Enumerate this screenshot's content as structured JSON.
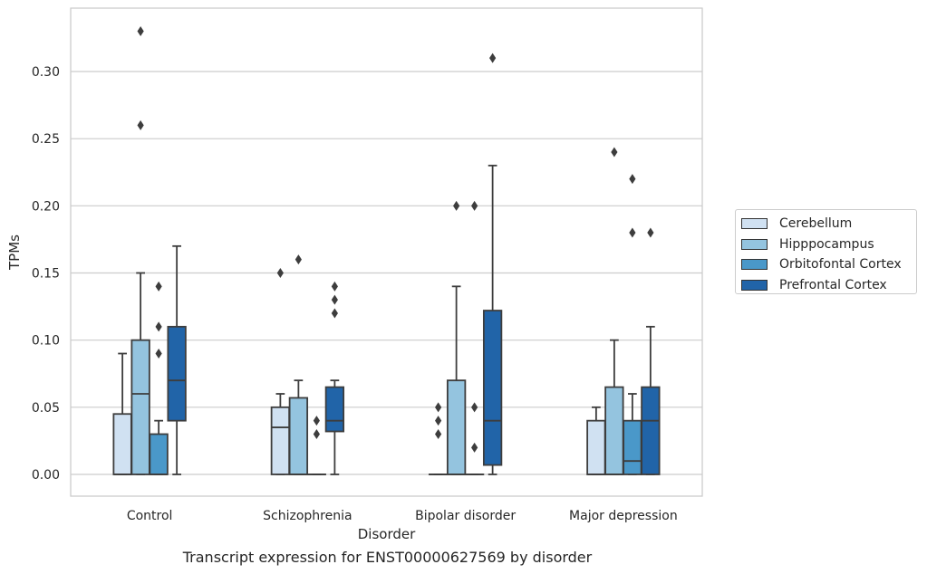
{
  "chart_data": {
    "type": "box",
    "title": "",
    "caption": "Transcript expression for ENST00000627569 by disorder",
    "xlabel": "Disorder",
    "ylabel": "TPMs",
    "ylim": [
      -0.016,
      0.348
    ],
    "yticks": [
      0.0,
      0.05,
      0.1,
      0.15,
      0.2,
      0.25,
      0.3
    ],
    "ytick_labels": [
      "0.00",
      "0.05",
      "0.10",
      "0.15",
      "0.20",
      "0.25",
      "0.30"
    ],
    "grid": "horizontal",
    "legend_position": "right",
    "categories": [
      "Control",
      "Schizophrenia",
      "Bipolar disorder",
      "Major depression"
    ],
    "series": [
      {
        "name": "Cerebellum",
        "color": "#d0e1f2",
        "boxes": [
          {
            "q1": 0.0,
            "median": 0.0,
            "q3": 0.045,
            "whisker_low": 0.0,
            "whisker_high": 0.09,
            "outliers": []
          },
          {
            "q1": 0.0,
            "median": 0.035,
            "q3": 0.05,
            "whisker_low": 0.0,
            "whisker_high": 0.06,
            "outliers": [
              0.15
            ]
          },
          {
            "q1": 0.0,
            "median": 0.0,
            "q3": 0.0,
            "whisker_low": 0.0,
            "whisker_high": 0.0,
            "outliers": [
              0.03,
              0.04,
              0.05
            ]
          },
          {
            "q1": 0.0,
            "median": 0.0,
            "q3": 0.04,
            "whisker_low": 0.0,
            "whisker_high": 0.05,
            "outliers": []
          }
        ]
      },
      {
        "name": "Hipppocampus",
        "color": "#94c4df",
        "boxes": [
          {
            "q1": 0.0,
            "median": 0.06,
            "q3": 0.1,
            "whisker_low": 0.0,
            "whisker_high": 0.15,
            "outliers": [
              0.26,
              0.33
            ]
          },
          {
            "q1": 0.0,
            "median": 0.0,
            "q3": 0.057,
            "whisker_low": 0.0,
            "whisker_high": 0.07,
            "outliers": [
              0.16
            ]
          },
          {
            "q1": 0.0,
            "median": 0.0,
            "q3": 0.07,
            "whisker_low": 0.0,
            "whisker_high": 0.14,
            "outliers": [
              0.2
            ]
          },
          {
            "q1": 0.0,
            "median": 0.0,
            "q3": 0.065,
            "whisker_low": 0.0,
            "whisker_high": 0.1,
            "outliers": [
              0.24
            ]
          }
        ]
      },
      {
        "name": "Orbitofontal Cortex",
        "color": "#4a98c9",
        "boxes": [
          {
            "q1": 0.0,
            "median": 0.0,
            "q3": 0.03,
            "whisker_low": 0.0,
            "whisker_high": 0.04,
            "outliers": [
              0.09,
              0.11,
              0.14
            ]
          },
          {
            "q1": 0.0,
            "median": 0.0,
            "q3": 0.0,
            "whisker_low": 0.0,
            "whisker_high": 0.0,
            "outliers": [
              0.03,
              0.04
            ]
          },
          {
            "q1": 0.0,
            "median": 0.0,
            "q3": 0.0,
            "whisker_low": 0.0,
            "whisker_high": 0.0,
            "outliers": [
              0.02,
              0.05,
              0.2
            ]
          },
          {
            "q1": 0.0,
            "median": 0.01,
            "q3": 0.04,
            "whisker_low": 0.0,
            "whisker_high": 0.06,
            "outliers": [
              0.18,
              0.22
            ]
          }
        ]
      },
      {
        "name": "Prefrontal Cortex",
        "color": "#2164a8",
        "boxes": [
          {
            "q1": 0.04,
            "median": 0.07,
            "q3": 0.11,
            "whisker_low": 0.0,
            "whisker_high": 0.17,
            "outliers": []
          },
          {
            "q1": 0.032,
            "median": 0.04,
            "q3": 0.065,
            "whisker_low": 0.0,
            "whisker_high": 0.07,
            "outliers": [
              0.12,
              0.13,
              0.14
            ]
          },
          {
            "q1": 0.007,
            "median": 0.04,
            "q3": 0.122,
            "whisker_low": 0.0,
            "whisker_high": 0.23,
            "outliers": [
              0.31
            ]
          },
          {
            "q1": 0.0,
            "median": 0.04,
            "q3": 0.065,
            "whisker_low": 0.0,
            "whisker_high": 0.11,
            "outliers": [
              0.18
            ]
          }
        ]
      }
    ]
  }
}
